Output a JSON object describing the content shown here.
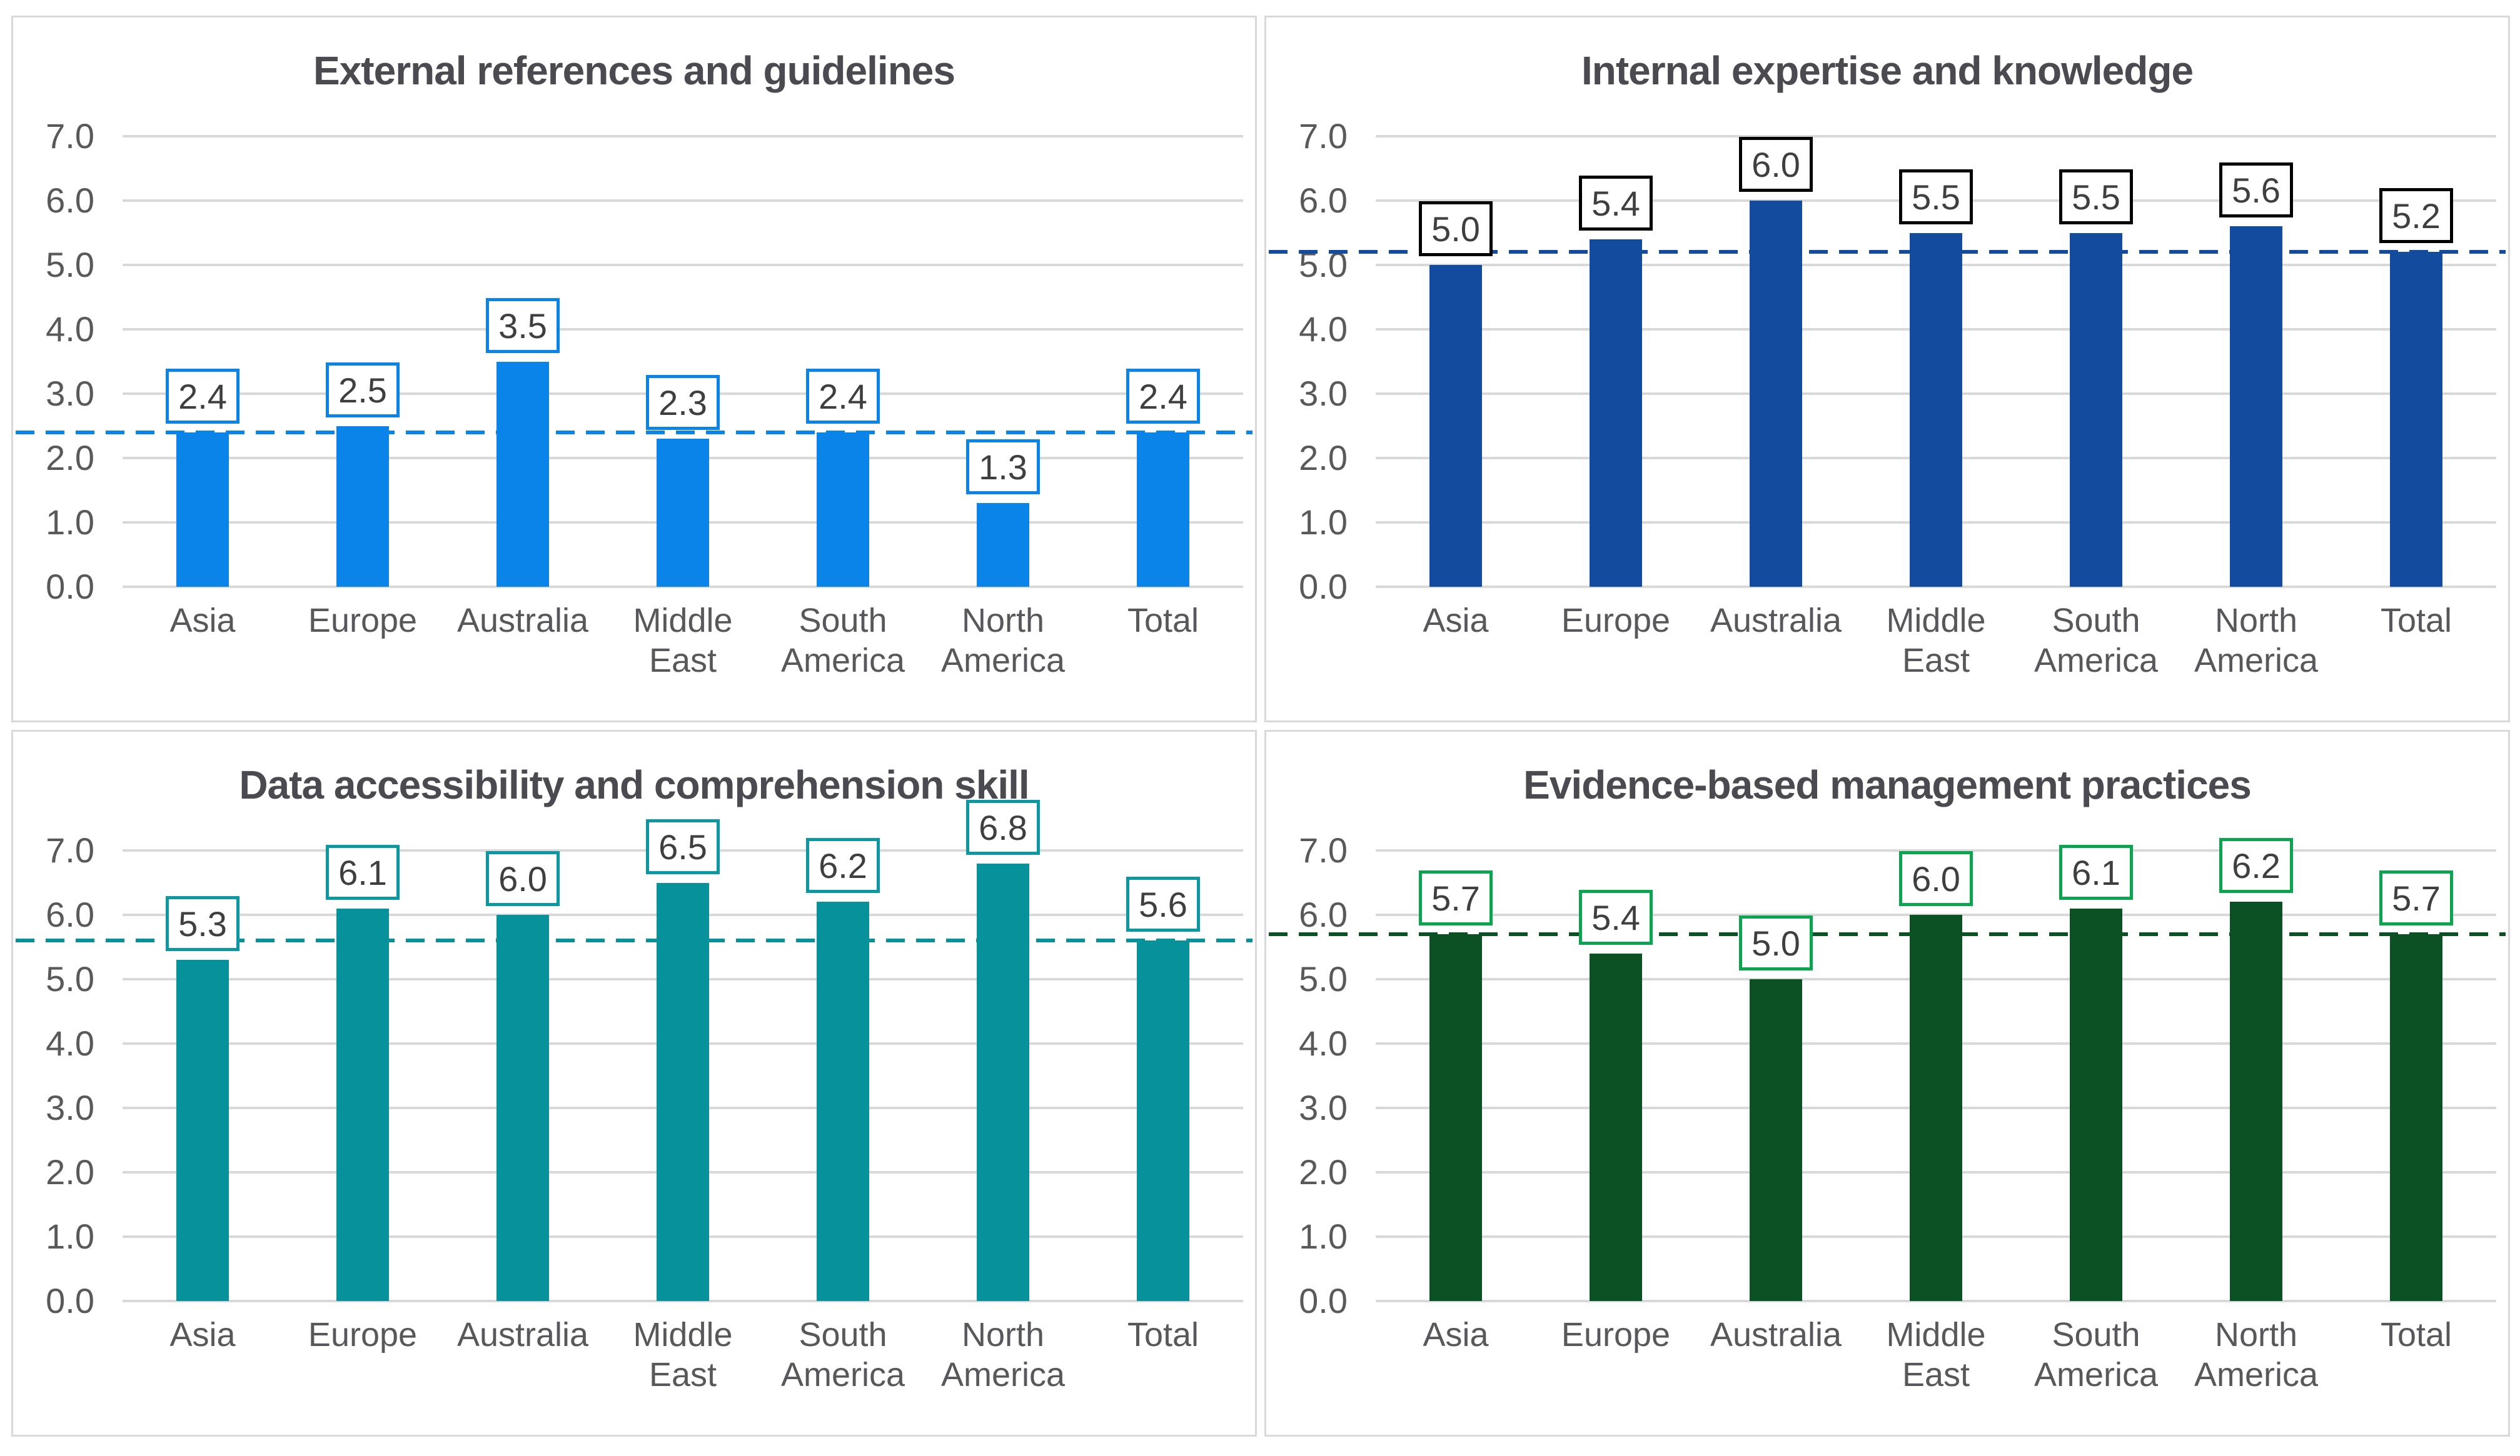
{
  "page": {
    "background": "#FFFFFF",
    "panel_border_color": "#D9D9D9",
    "gridline_color": "#D9D9D9",
    "title_color": "#4A4A50",
    "axis_text_color": "#595959",
    "data_label_text_color": "#3F3F3F"
  },
  "chart_data": [
    {
      "type": "bar",
      "title": "External references and guidelines",
      "categories": [
        "Asia",
        "Europe",
        "Australia",
        "Middle East",
        "South America",
        "North America",
        "Total"
      ],
      "category_lines": [
        [
          "Asia"
        ],
        [
          "Europe"
        ],
        [
          "Australia"
        ],
        [
          "Middle",
          "East"
        ],
        [
          "South",
          "America"
        ],
        [
          "North",
          "America"
        ],
        [
          "Total"
        ]
      ],
      "values": [
        2.4,
        2.5,
        3.5,
        2.3,
        2.4,
        1.3,
        2.4
      ],
      "labels": [
        "2.4",
        "2.5",
        "3.5",
        "2.3",
        "2.4",
        "1.3",
        "2.4"
      ],
      "reference_line": 2.4,
      "ylim": [
        0,
        7
      ],
      "yticks": [
        "7.0",
        "6.0",
        "5.0",
        "4.0",
        "3.0",
        "2.0",
        "1.0",
        "0.0"
      ],
      "grid": true,
      "legend": false,
      "bar_color": "#0A84E8",
      "label_border_color": "#0A84E8",
      "dash_color": "#0A84E8"
    },
    {
      "type": "bar",
      "title": "Internal expertise and knowledge",
      "categories": [
        "Asia",
        "Europe",
        "Australia",
        "Middle East",
        "South America",
        "North America",
        "Total"
      ],
      "category_lines": [
        [
          "Asia"
        ],
        [
          "Europe"
        ],
        [
          "Australia"
        ],
        [
          "Middle",
          "East"
        ],
        [
          "South",
          "America"
        ],
        [
          "North",
          "America"
        ],
        [
          "Total"
        ]
      ],
      "values": [
        5.0,
        5.4,
        6.0,
        5.5,
        5.5,
        5.6,
        5.2
      ],
      "labels": [
        "5.0",
        "5.4",
        "6.0",
        "5.5",
        "5.5",
        "5.6",
        "5.2"
      ],
      "reference_line": 5.2,
      "ylim": [
        0,
        7
      ],
      "yticks": [
        "7.0",
        "6.0",
        "5.0",
        "4.0",
        "3.0",
        "2.0",
        "1.0",
        "0.0"
      ],
      "grid": true,
      "legend": false,
      "bar_color": "#134B9E",
      "label_border_color": "#000000",
      "dash_color": "#134B9E"
    },
    {
      "type": "bar",
      "title": "Data accessibility and comprehension skill",
      "categories": [
        "Asia",
        "Europe",
        "Australia",
        "Middle East",
        "South America",
        "North America",
        "Total"
      ],
      "category_lines": [
        [
          "Asia"
        ],
        [
          "Europe"
        ],
        [
          "Australia"
        ],
        [
          "Middle",
          "East"
        ],
        [
          "South",
          "America"
        ],
        [
          "North",
          "America"
        ],
        [
          "Total"
        ]
      ],
      "values": [
        5.3,
        6.1,
        6.0,
        6.5,
        6.2,
        6.8,
        5.6
      ],
      "labels": [
        "5.3",
        "6.1",
        "6.0",
        "6.5",
        "6.2",
        "6.8",
        "5.6"
      ],
      "reference_line": 5.6,
      "ylim": [
        0,
        7
      ],
      "yticks": [
        "7.0",
        "6.0",
        "5.0",
        "4.0",
        "3.0",
        "2.0",
        "1.0",
        "0.0"
      ],
      "grid": true,
      "legend": false,
      "bar_color": "#07929B",
      "label_border_color": "#0A99A3",
      "dash_color": "#07929B"
    },
    {
      "type": "bar",
      "title": "Evidence-based management practices",
      "categories": [
        "Asia",
        "Europe",
        "Australia",
        "Middle East",
        "South America",
        "North America",
        "Total"
      ],
      "category_lines": [
        [
          "Asia"
        ],
        [
          "Europe"
        ],
        [
          "Australia"
        ],
        [
          "Middle",
          "East"
        ],
        [
          "South",
          "America"
        ],
        [
          "North",
          "America"
        ],
        [
          "Total"
        ]
      ],
      "values": [
        5.7,
        5.4,
        5.0,
        6.0,
        6.1,
        6.2,
        5.7
      ],
      "labels": [
        "5.7",
        "5.4",
        "5.0",
        "6.0",
        "6.1",
        "6.2",
        "5.7"
      ],
      "reference_line": 5.7,
      "ylim": [
        0,
        7
      ],
      "yticks": [
        "7.0",
        "6.0",
        "5.0",
        "4.0",
        "3.0",
        "2.0",
        "1.0",
        "0.0"
      ],
      "grid": true,
      "legend": false,
      "bar_color": "#0B5123",
      "label_border_color": "#09A64F",
      "dash_color": "#0B5123"
    }
  ]
}
